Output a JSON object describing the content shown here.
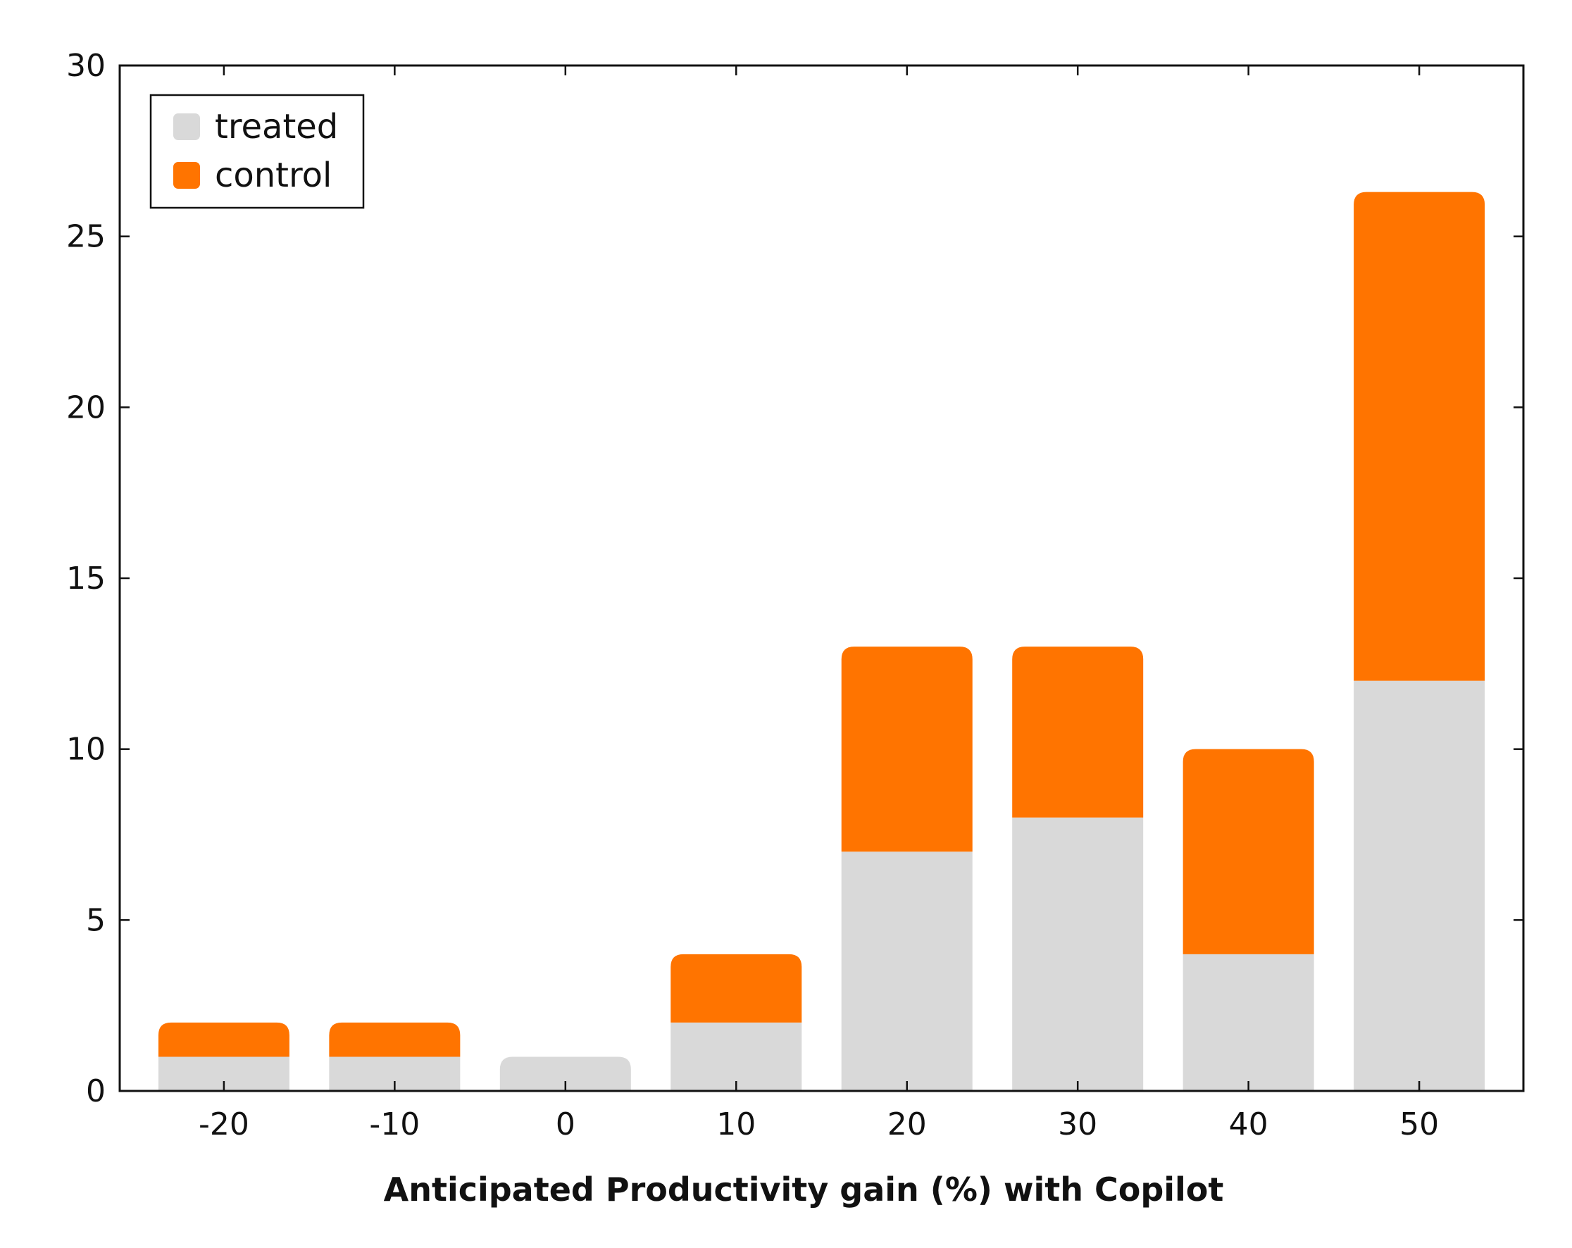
{
  "chart_data": {
    "type": "bar",
    "stacked": true,
    "title": "",
    "xlabel": "Anticipated Productivity gain (%) with Copilot",
    "ylabel": "",
    "categories": [
      "-20",
      "-10",
      "0",
      "10",
      "20",
      "30",
      "40",
      "50"
    ],
    "series": [
      {
        "name": "treated",
        "color": "#d9d9d9",
        "values": [
          1,
          1,
          1,
          2,
          7,
          8,
          4,
          12
        ]
      },
      {
        "name": "control",
        "color": "#ff7400",
        "values": [
          1,
          1,
          0,
          2,
          6,
          5,
          6,
          14.3
        ]
      }
    ],
    "ylim": [
      0,
      30
    ],
    "yticks": [
      "0",
      "5",
      "10",
      "15",
      "20",
      "25",
      "30"
    ],
    "grid": false,
    "legend_position": "top-left"
  }
}
